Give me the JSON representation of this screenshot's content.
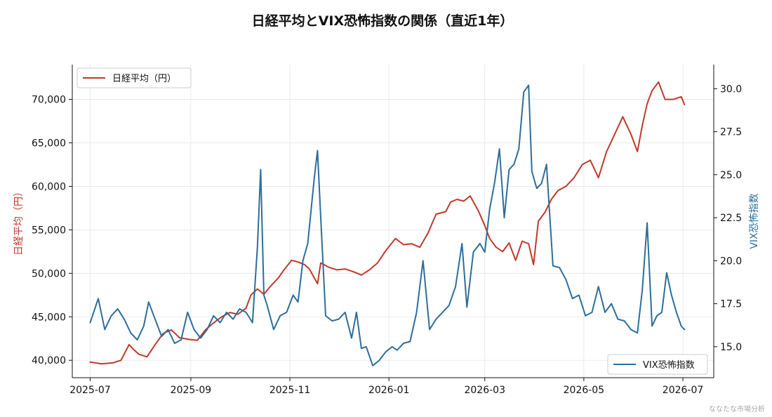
{
  "chart_data": {
    "type": "line",
    "title": "日経平均とVIX恐怖指数の関係（直近1年）",
    "watermark": "ななたな市場分析",
    "xlabel": "",
    "x_ticks": [
      "2025-07",
      "2025-09",
      "2025-11",
      "2026-01",
      "2026-03",
      "2026-05",
      "2026-07"
    ],
    "xlim": [
      "2025-06-20",
      "2026-07-20"
    ],
    "grid": true,
    "left_axis": {
      "label": "日経平均（円）",
      "color": "#c0392b",
      "ylim": [
        38000,
        74000
      ],
      "ticks": [
        40000,
        45000,
        50000,
        55000,
        60000,
        65000,
        70000
      ],
      "tick_labels": [
        "40,000",
        "45,000",
        "50,000",
        "55,000",
        "60,000",
        "65,000",
        "70,000"
      ]
    },
    "right_axis": {
      "label": "VIX恐怖指数",
      "color": "#2c6e9b",
      "ylim": [
        13.2,
        31.4
      ],
      "ticks": [
        15.0,
        17.5,
        20.0,
        22.5,
        25.0,
        27.5,
        30.0
      ],
      "tick_labels": [
        "15.0",
        "17.5",
        "20.0",
        "22.5",
        "25.0",
        "27.5",
        "30.0"
      ]
    },
    "legend_left": {
      "label": "日経平均（円）",
      "placement": "top-left"
    },
    "legend_right": {
      "label": "VIX恐怖指数",
      "placement": "bottom-right"
    },
    "series": [
      {
        "name": "日経平均（円）",
        "axis": "left",
        "color": "#c0392b",
        "x": [
          "2025-07-01",
          "2025-07-08",
          "2025-07-15",
          "2025-07-20",
          "2025-07-25",
          "2025-07-28",
          "2025-07-31",
          "2025-08-05",
          "2025-08-10",
          "2025-08-15",
          "2025-08-20",
          "2025-08-25",
          "2025-08-31",
          "2025-09-05",
          "2025-09-10",
          "2025-09-15",
          "2025-09-20",
          "2025-09-25",
          "2025-09-30",
          "2025-10-05",
          "2025-10-08",
          "2025-10-12",
          "2025-10-16",
          "2025-10-20",
          "2025-10-25",
          "2025-10-28",
          "2025-11-02",
          "2025-11-06",
          "2025-11-10",
          "2025-11-13",
          "2025-11-18",
          "2025-11-20",
          "2025-11-25",
          "2025-11-30",
          "2025-12-05",
          "2025-12-10",
          "2025-12-15",
          "2025-12-20",
          "2025-12-25",
          "2025-12-30",
          "2026-01-05",
          "2026-01-10",
          "2026-01-15",
          "2026-01-20",
          "2026-01-25",
          "2026-01-30",
          "2026-02-05",
          "2026-02-08",
          "2026-02-12",
          "2026-02-16",
          "2026-02-20",
          "2026-02-25",
          "2026-03-01",
          "2026-03-04",
          "2026-03-08",
          "2026-03-12",
          "2026-03-16",
          "2026-03-20",
          "2026-03-24",
          "2026-03-28",
          "2026-03-31",
          "2026-04-03",
          "2026-04-07",
          "2026-04-11",
          "2026-04-15",
          "2026-04-20",
          "2026-04-25",
          "2026-04-30",
          "2026-05-05",
          "2026-05-10",
          "2026-05-15",
          "2026-05-20",
          "2026-05-25",
          "2026-05-30",
          "2026-06-03",
          "2026-06-06",
          "2026-06-09",
          "2026-06-12",
          "2026-06-16",
          "2026-06-20",
          "2026-06-25",
          "2026-06-30",
          "2026-07-02"
        ],
        "values": [
          39800,
          39600,
          39700,
          40000,
          41800,
          41200,
          40700,
          40400,
          41800,
          43100,
          43500,
          42600,
          42400,
          42300,
          43500,
          44300,
          45000,
          45500,
          45300,
          46000,
          47500,
          48200,
          47600,
          48500,
          49500,
          50300,
          51500,
          51300,
          51000,
          50500,
          48800,
          51200,
          50700,
          50400,
          50500,
          50200,
          49800,
          50400,
          51200,
          52600,
          54000,
          53300,
          53400,
          53000,
          54600,
          56800,
          57100,
          58200,
          58500,
          58300,
          58900,
          57200,
          55500,
          54000,
          53000,
          52500,
          53500,
          51500,
          53700,
          53400,
          51000,
          56000,
          57000,
          58500,
          59500,
          60000,
          61000,
          62500,
          63000,
          61000,
          64000,
          66000,
          68000,
          66000,
          64000,
          67000,
          69500,
          71000,
          72000,
          70000,
          70000,
          70300,
          69400
        ]
      },
      {
        "name": "VIX恐怖指数",
        "axis": "right",
        "color": "#2c6e9b",
        "x": [
          "2025-07-01",
          "2025-07-06",
          "2025-07-10",
          "2025-07-14",
          "2025-07-18",
          "2025-07-22",
          "2025-07-26",
          "2025-07-30",
          "2025-08-03",
          "2025-08-06",
          "2025-08-10",
          "2025-08-14",
          "2025-08-18",
          "2025-08-22",
          "2025-08-26",
          "2025-08-30",
          "2025-09-03",
          "2025-09-07",
          "2025-09-11",
          "2025-09-15",
          "2025-09-19",
          "2025-09-23",
          "2025-09-27",
          "2025-10-01",
          "2025-10-05",
          "2025-10-09",
          "2025-10-12",
          "2025-10-14",
          "2025-10-16",
          "2025-10-18",
          "2025-10-22",
          "2025-10-26",
          "2025-10-30",
          "2025-11-03",
          "2025-11-06",
          "2025-11-09",
          "2025-11-12",
          "2025-11-16",
          "2025-11-18",
          "2025-11-20",
          "2025-11-23",
          "2025-11-27",
          "2025-12-01",
          "2025-12-05",
          "2025-12-09",
          "2025-12-12",
          "2025-12-15",
          "2025-12-18",
          "2025-12-22",
          "2025-12-26",
          "2025-12-30",
          "2026-01-03",
          "2026-01-06",
          "2026-01-10",
          "2026-01-14",
          "2026-01-18",
          "2026-01-22",
          "2026-01-26",
          "2026-01-30",
          "2026-02-03",
          "2026-02-07",
          "2026-02-11",
          "2026-02-15",
          "2026-02-18",
          "2026-02-22",
          "2026-02-26",
          "2026-03-01",
          "2026-03-04",
          "2026-03-07",
          "2026-03-10",
          "2026-03-13",
          "2026-03-16",
          "2026-03-19",
          "2026-03-22",
          "2026-03-25",
          "2026-03-28",
          "2026-03-30",
          "2026-04-02",
          "2026-04-05",
          "2026-04-08",
          "2026-04-12",
          "2026-04-16",
          "2026-04-20",
          "2026-04-24",
          "2026-04-28",
          "2026-05-02",
          "2026-05-06",
          "2026-05-10",
          "2026-05-14",
          "2026-05-18",
          "2026-05-22",
          "2026-05-26",
          "2026-05-30",
          "2026-06-03",
          "2026-06-06",
          "2026-06-09",
          "2026-06-12",
          "2026-06-15",
          "2026-06-18",
          "2026-06-21",
          "2026-06-24",
          "2026-06-27",
          "2026-06-30",
          "2026-07-02"
        ],
        "values": [
          16.4,
          17.8,
          16.0,
          16.8,
          17.2,
          16.6,
          15.8,
          15.4,
          16.2,
          17.6,
          16.6,
          15.6,
          16.0,
          15.2,
          15.4,
          17.0,
          16.0,
          15.5,
          16.0,
          16.8,
          16.4,
          17.0,
          16.6,
          17.2,
          17.0,
          16.4,
          20.8,
          25.3,
          18.0,
          17.4,
          16.0,
          16.8,
          17.0,
          18.0,
          17.6,
          20.0,
          21.0,
          24.8,
          26.4,
          22.5,
          16.8,
          16.5,
          16.6,
          17.0,
          15.5,
          17.0,
          14.9,
          15.0,
          13.9,
          14.2,
          14.7,
          15.0,
          14.8,
          15.2,
          15.3,
          17.0,
          20.0,
          16.0,
          16.6,
          17.0,
          17.4,
          18.5,
          21.0,
          17.3,
          20.5,
          21.0,
          20.5,
          23.0,
          24.5,
          26.5,
          22.5,
          25.3,
          25.6,
          26.5,
          29.8,
          30.2,
          25.2,
          24.2,
          24.5,
          25.6,
          19.7,
          19.6,
          18.9,
          17.8,
          18.0,
          16.8,
          17.0,
          18.5,
          17.0,
          17.5,
          16.6,
          16.5,
          16.0,
          15.8,
          18.3,
          22.2,
          16.2,
          16.8,
          17.0,
          19.3,
          18.0,
          17.0,
          16.2,
          16.0
        ]
      }
    ]
  }
}
